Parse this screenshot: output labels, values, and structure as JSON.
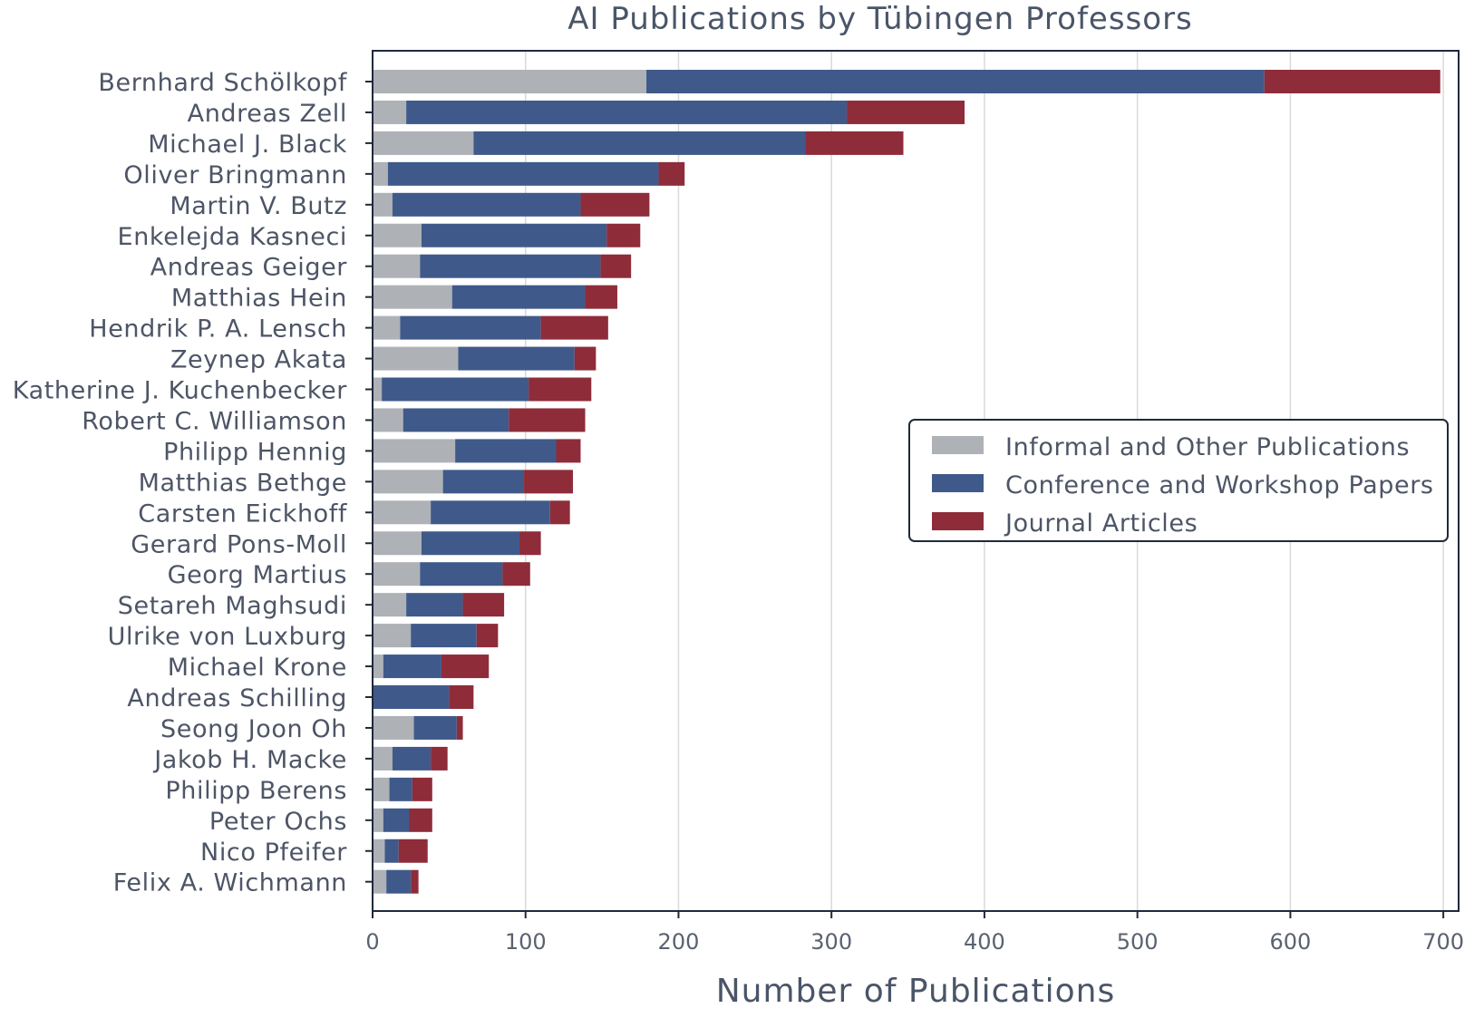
{
  "chart_data": {
    "type": "bar",
    "orientation": "horizontal",
    "stacked": true,
    "title": "AI Publications by Tübingen Professors",
    "xlabel": "Number of Publications",
    "ylabel": "",
    "xlim": [
      0,
      710
    ],
    "xticks": [
      0,
      100,
      200,
      300,
      400,
      500,
      600,
      700
    ],
    "grid": "vertical",
    "legend_position": "right",
    "categories": [
      "Bernhard Schölkopf",
      "Andreas Zell",
      "Michael J. Black",
      "Oliver Bringmann",
      "Martin V. Butz",
      "Enkelejda Kasneci",
      "Andreas Geiger",
      "Matthias Hein",
      "Hendrik P. A. Lensch",
      "Zeynep Akata",
      "Katherine J. Kuchenbecker",
      "Robert C. Williamson",
      "Philipp Hennig",
      "Matthias Bethge",
      "Carsten Eickhoff",
      "Gerard Pons-Moll",
      "Georg Martius",
      "Setareh Maghsudi",
      "Ulrike von Luxburg",
      "Michael Krone",
      "Andreas Schilling",
      "Seong Joon Oh",
      "Jakob H. Macke",
      "Philipp Berens",
      "Peter Ochs",
      "Nico Pfeifer",
      "Felix A. Wichmann"
    ],
    "series": [
      {
        "name": "Informal and Other Publications",
        "color": "#aeb1b6",
        "values": [
          179,
          22,
          66,
          10,
          13,
          32,
          31,
          52,
          18,
          56,
          6,
          20,
          54,
          46,
          38,
          32,
          31,
          22,
          25,
          7,
          0,
          27,
          13,
          11,
          7,
          8,
          9
        ]
      },
      {
        "name": "Conference and Workshop Papers",
        "color": "#3f5a8a",
        "values": [
          404,
          288,
          217,
          177,
          123,
          121,
          118,
          87,
          92,
          76,
          96,
          69,
          66,
          53,
          78,
          64,
          54,
          37,
          43,
          38,
          50,
          28,
          25,
          15,
          17,
          9,
          16
        ]
      },
      {
        "name": "Journal Articles",
        "color": "#8e2c3a",
        "values": [
          115,
          77,
          64,
          17,
          45,
          22,
          20,
          21,
          44,
          14,
          41,
          50,
          16,
          32,
          13,
          14,
          18,
          27,
          14,
          31,
          16,
          4,
          11,
          13,
          15,
          19,
          5
        ]
      }
    ]
  }
}
